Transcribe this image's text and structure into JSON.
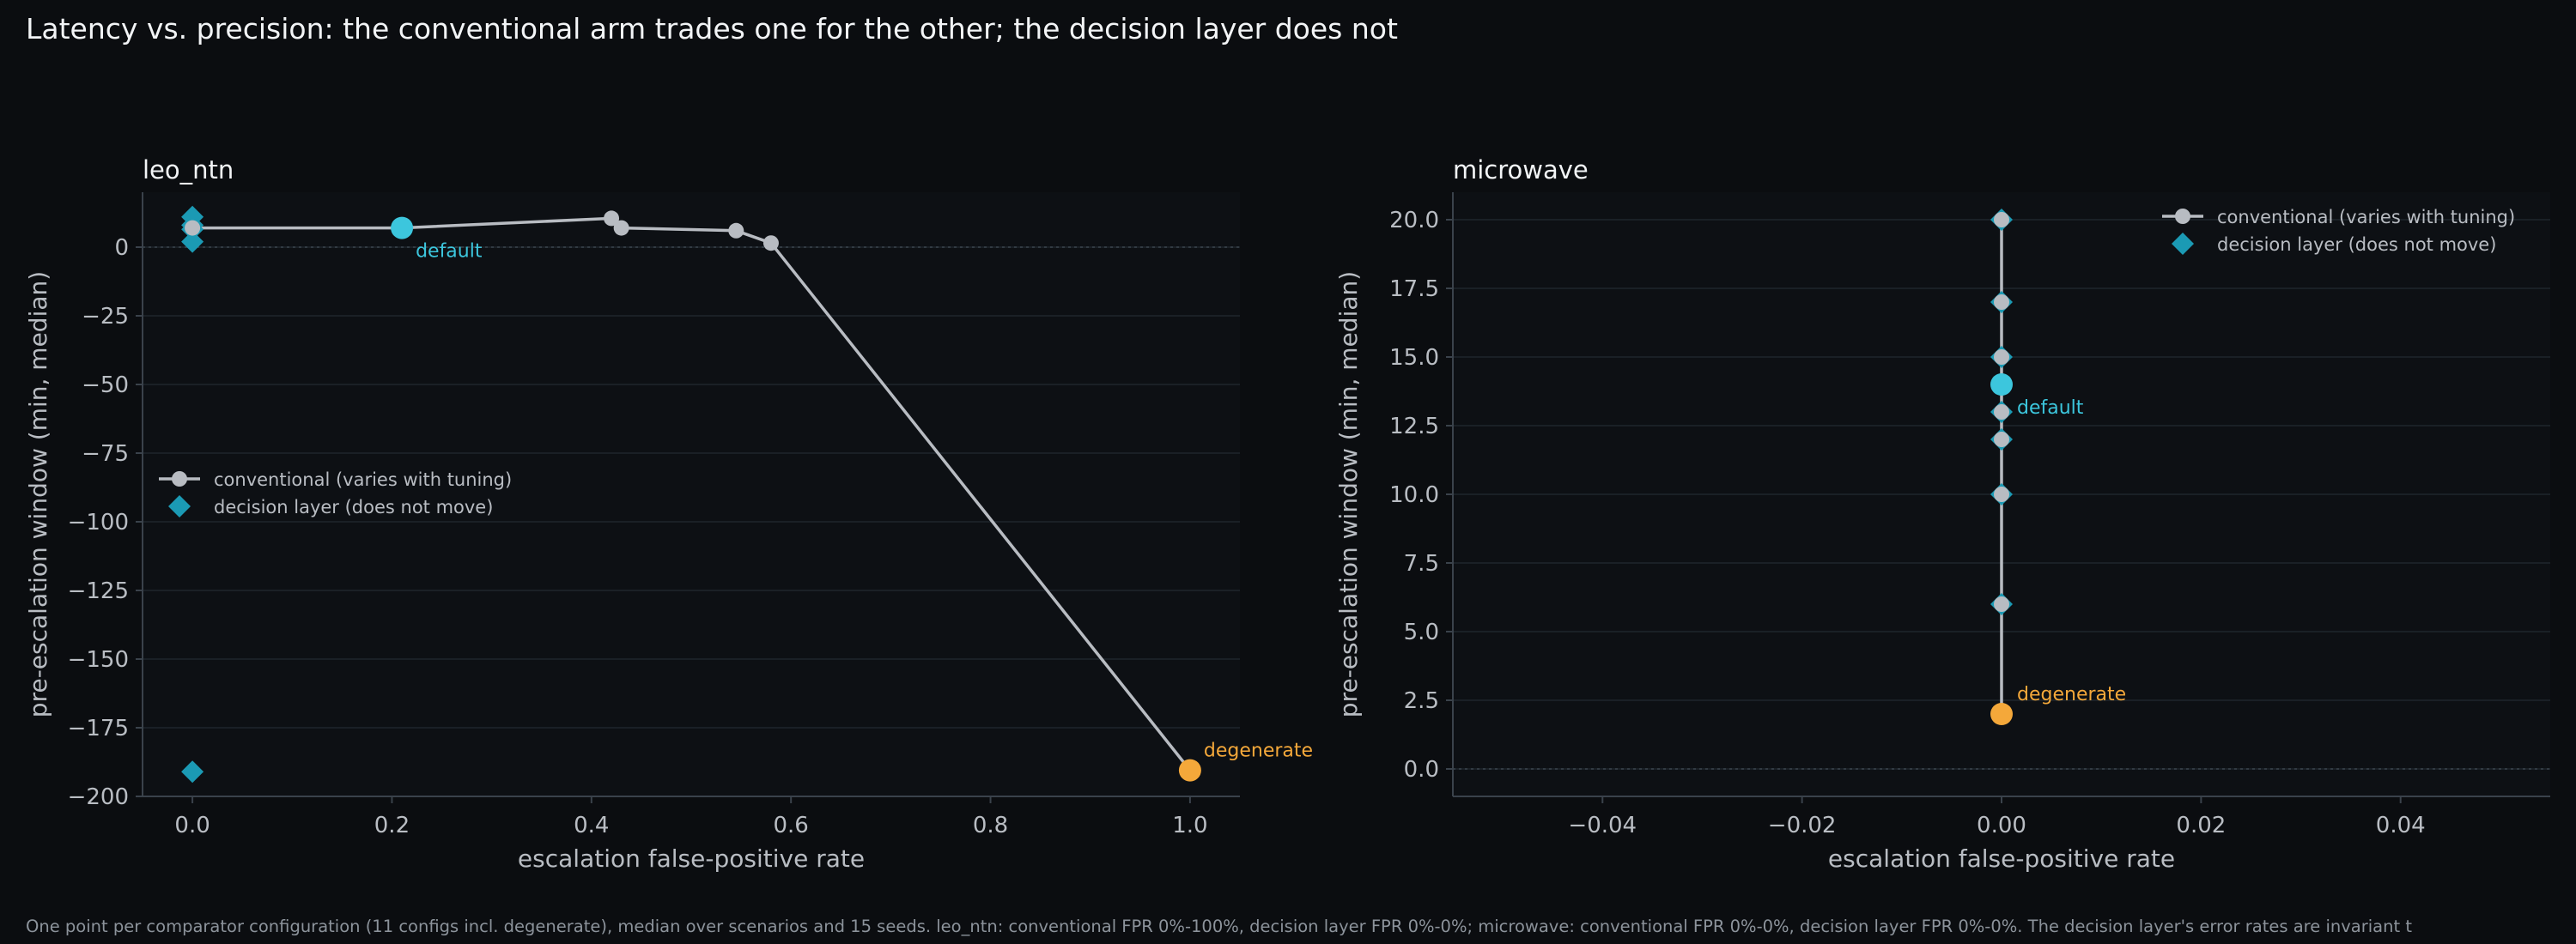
{
  "title": "Latency vs. precision: the conventional arm trades one for the other; the decision layer does not",
  "footnote": "One point per comparator configuration (11 configs incl. degenerate), median over scenarios and 15 seeds. leo_ntn: conventional FPR 0%-100%, decision layer FPR 0%-0%; microwave: conventional FPR 0%-0%, decision layer FPR 0%-0%. The decision layer's error rates are invariant t",
  "colors": {
    "background": "#0b0d10",
    "plot_bg": "#0d1014",
    "conventional": "#b8bcc2",
    "decision_layer": "#1b9ab4",
    "default": "#3cc6dd",
    "degenerate": "#f4a83a",
    "grid": "#1f262d",
    "axis": "#3a424b"
  },
  "chart_data": [
    {
      "type": "scatter",
      "title": "leo_ntn",
      "xlabel": "escalation false-positive rate",
      "ylabel": "pre-escalation window (min, median)",
      "xlim": [
        -0.05,
        1.05
      ],
      "ylim": [
        -200,
        20
      ],
      "xticks": [
        0.0,
        0.2,
        0.4,
        0.6,
        0.8,
        1.0
      ],
      "xtick_labels": [
        "0.0",
        "0.2",
        "0.4",
        "0.6",
        "0.8",
        "1.0"
      ],
      "yticks": [
        0,
        -25,
        -50,
        -75,
        -100,
        -125,
        -150,
        -175,
        -200
      ],
      "ytick_labels": [
        "0",
        "−25",
        "−50",
        "−75",
        "−100",
        "−125",
        "−150",
        "−175",
        "−200"
      ],
      "grid": true,
      "legend_position": "center-left",
      "zero_line": 0,
      "series": [
        {
          "name": "conventional (varies with tuning)",
          "kind": "line-marker",
          "x": [
            0.0,
            0.21,
            0.42,
            0.43,
            0.545,
            0.58,
            1.0
          ],
          "y": [
            7,
            7,
            10.5,
            7,
            6,
            1.5,
            -190.5
          ]
        },
        {
          "name": "decision layer (does not move)",
          "kind": "diamond",
          "x": [
            0.0,
            0.0,
            0.0,
            0.0,
            0.0
          ],
          "y": [
            11,
            8,
            6.5,
            2,
            -191
          ]
        }
      ],
      "annotations": [
        {
          "label": "default",
          "x": 0.21,
          "y": 7,
          "color_key": "default",
          "dx": 16,
          "dy": 34
        },
        {
          "label": "degenerate",
          "x": 1.0,
          "y": -190.5,
          "color_key": "degenerate",
          "dx": 16,
          "dy": -16
        }
      ]
    },
    {
      "type": "scatter",
      "title": "microwave",
      "xlabel": "escalation false-positive rate",
      "ylabel": "pre-escalation window (min, median)",
      "xlim": [
        -0.055,
        0.055
      ],
      "ylim": [
        -1,
        21
      ],
      "xticks": [
        -0.04,
        -0.02,
        0.0,
        0.02,
        0.04
      ],
      "xtick_labels": [
        "−0.04",
        "−0.02",
        "0.00",
        "0.02",
        "0.04"
      ],
      "yticks": [
        0,
        2.5,
        5,
        7.5,
        10,
        12.5,
        15,
        17.5,
        20
      ],
      "ytick_labels": [
        "0.0",
        "2.5",
        "5.0",
        "7.5",
        "10.0",
        "12.5",
        "15.0",
        "17.5",
        "20.0"
      ],
      "grid": true,
      "legend_position": "top-right",
      "zero_line": 0,
      "series": [
        {
          "name": "conventional (varies with tuning)",
          "kind": "line-marker",
          "x": [
            0,
            0,
            0,
            0,
            0,
            0,
            0,
            0,
            0
          ],
          "y": [
            20,
            17,
            15,
            14,
            13,
            12,
            10,
            6,
            2
          ]
        },
        {
          "name": "decision layer (does not move)",
          "kind": "diamond",
          "x": [
            0,
            0,
            0,
            0,
            0,
            0,
            0
          ],
          "y": [
            20,
            17,
            15,
            13,
            12,
            10,
            6
          ]
        }
      ],
      "annotations": [
        {
          "label": "default",
          "x": 0,
          "y": 14,
          "color_key": "default",
          "dx": 18,
          "dy": 34
        },
        {
          "label": "degenerate",
          "x": 0,
          "y": 2,
          "color_key": "degenerate",
          "dx": 18,
          "dy": -16
        }
      ]
    }
  ]
}
